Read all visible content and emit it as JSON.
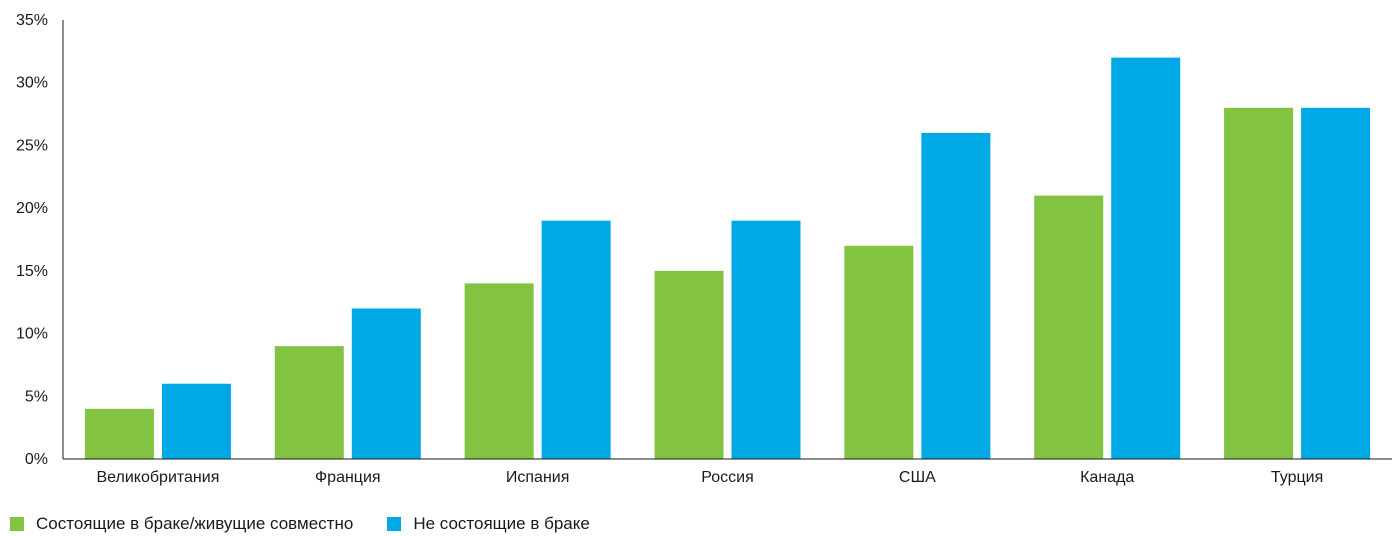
{
  "chart_data": {
    "type": "bar",
    "title": "",
    "xlabel": "",
    "ylabel": "",
    "ylim": [
      0,
      35
    ],
    "yticks": [
      0,
      5,
      10,
      15,
      20,
      25,
      30,
      35
    ],
    "ytick_labels": [
      "0%",
      "5%",
      "10%",
      "15%",
      "20%",
      "25%",
      "30%",
      "35%"
    ],
    "categories": [
      "Великобритания",
      "Франция",
      "Испания",
      "Россия",
      "США",
      "Канада",
      "Турция"
    ],
    "series": [
      {
        "name": "Состоящие в браке/живущие совместно",
        "color": "#82c341",
        "values": [
          4,
          9,
          14,
          15,
          17,
          21,
          28
        ]
      },
      {
        "name": "Не состоящие в браке",
        "color": "#00a9e6",
        "values": [
          6,
          12,
          19,
          19,
          26,
          32,
          28
        ]
      }
    ],
    "legend_position": "bottom-left",
    "grid": false
  }
}
